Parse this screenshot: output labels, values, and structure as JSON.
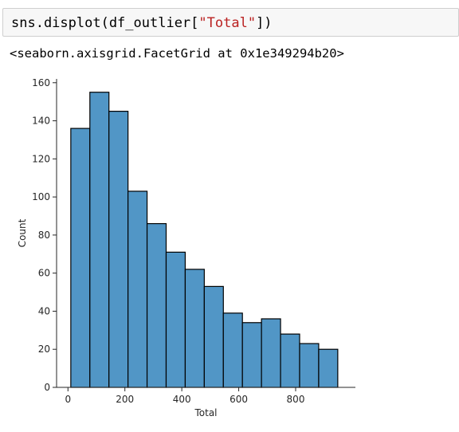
{
  "cell": {
    "code_prefix": "sns.displot(df_outlier[",
    "code_string": "\"Total\"",
    "code_suffix": "])"
  },
  "output": {
    "text": "<seaborn.axisgrid.FacetGrid at 0x1e349294b20>"
  },
  "chart_data": {
    "type": "bar",
    "subtype": "histogram",
    "xlabel": "Total",
    "ylabel": "Count",
    "xlim": [
      -40,
      1010
    ],
    "ylim": [
      0,
      162
    ],
    "x_ticks": [
      0,
      200,
      400,
      600,
      800
    ],
    "y_ticks": [
      0,
      20,
      40,
      60,
      80,
      100,
      120,
      140,
      160
    ],
    "bin_edges": [
      10,
      77,
      144,
      211,
      278,
      345,
      412,
      479,
      546,
      613,
      680,
      747,
      814,
      881,
      948
    ],
    "values": [
      136,
      155,
      145,
      103,
      86,
      71,
      62,
      53,
      39,
      34,
      36,
      28,
      23,
      20
    ],
    "bar_color": "#5196c6",
    "edge_color": "#000000",
    "grid": false
  }
}
